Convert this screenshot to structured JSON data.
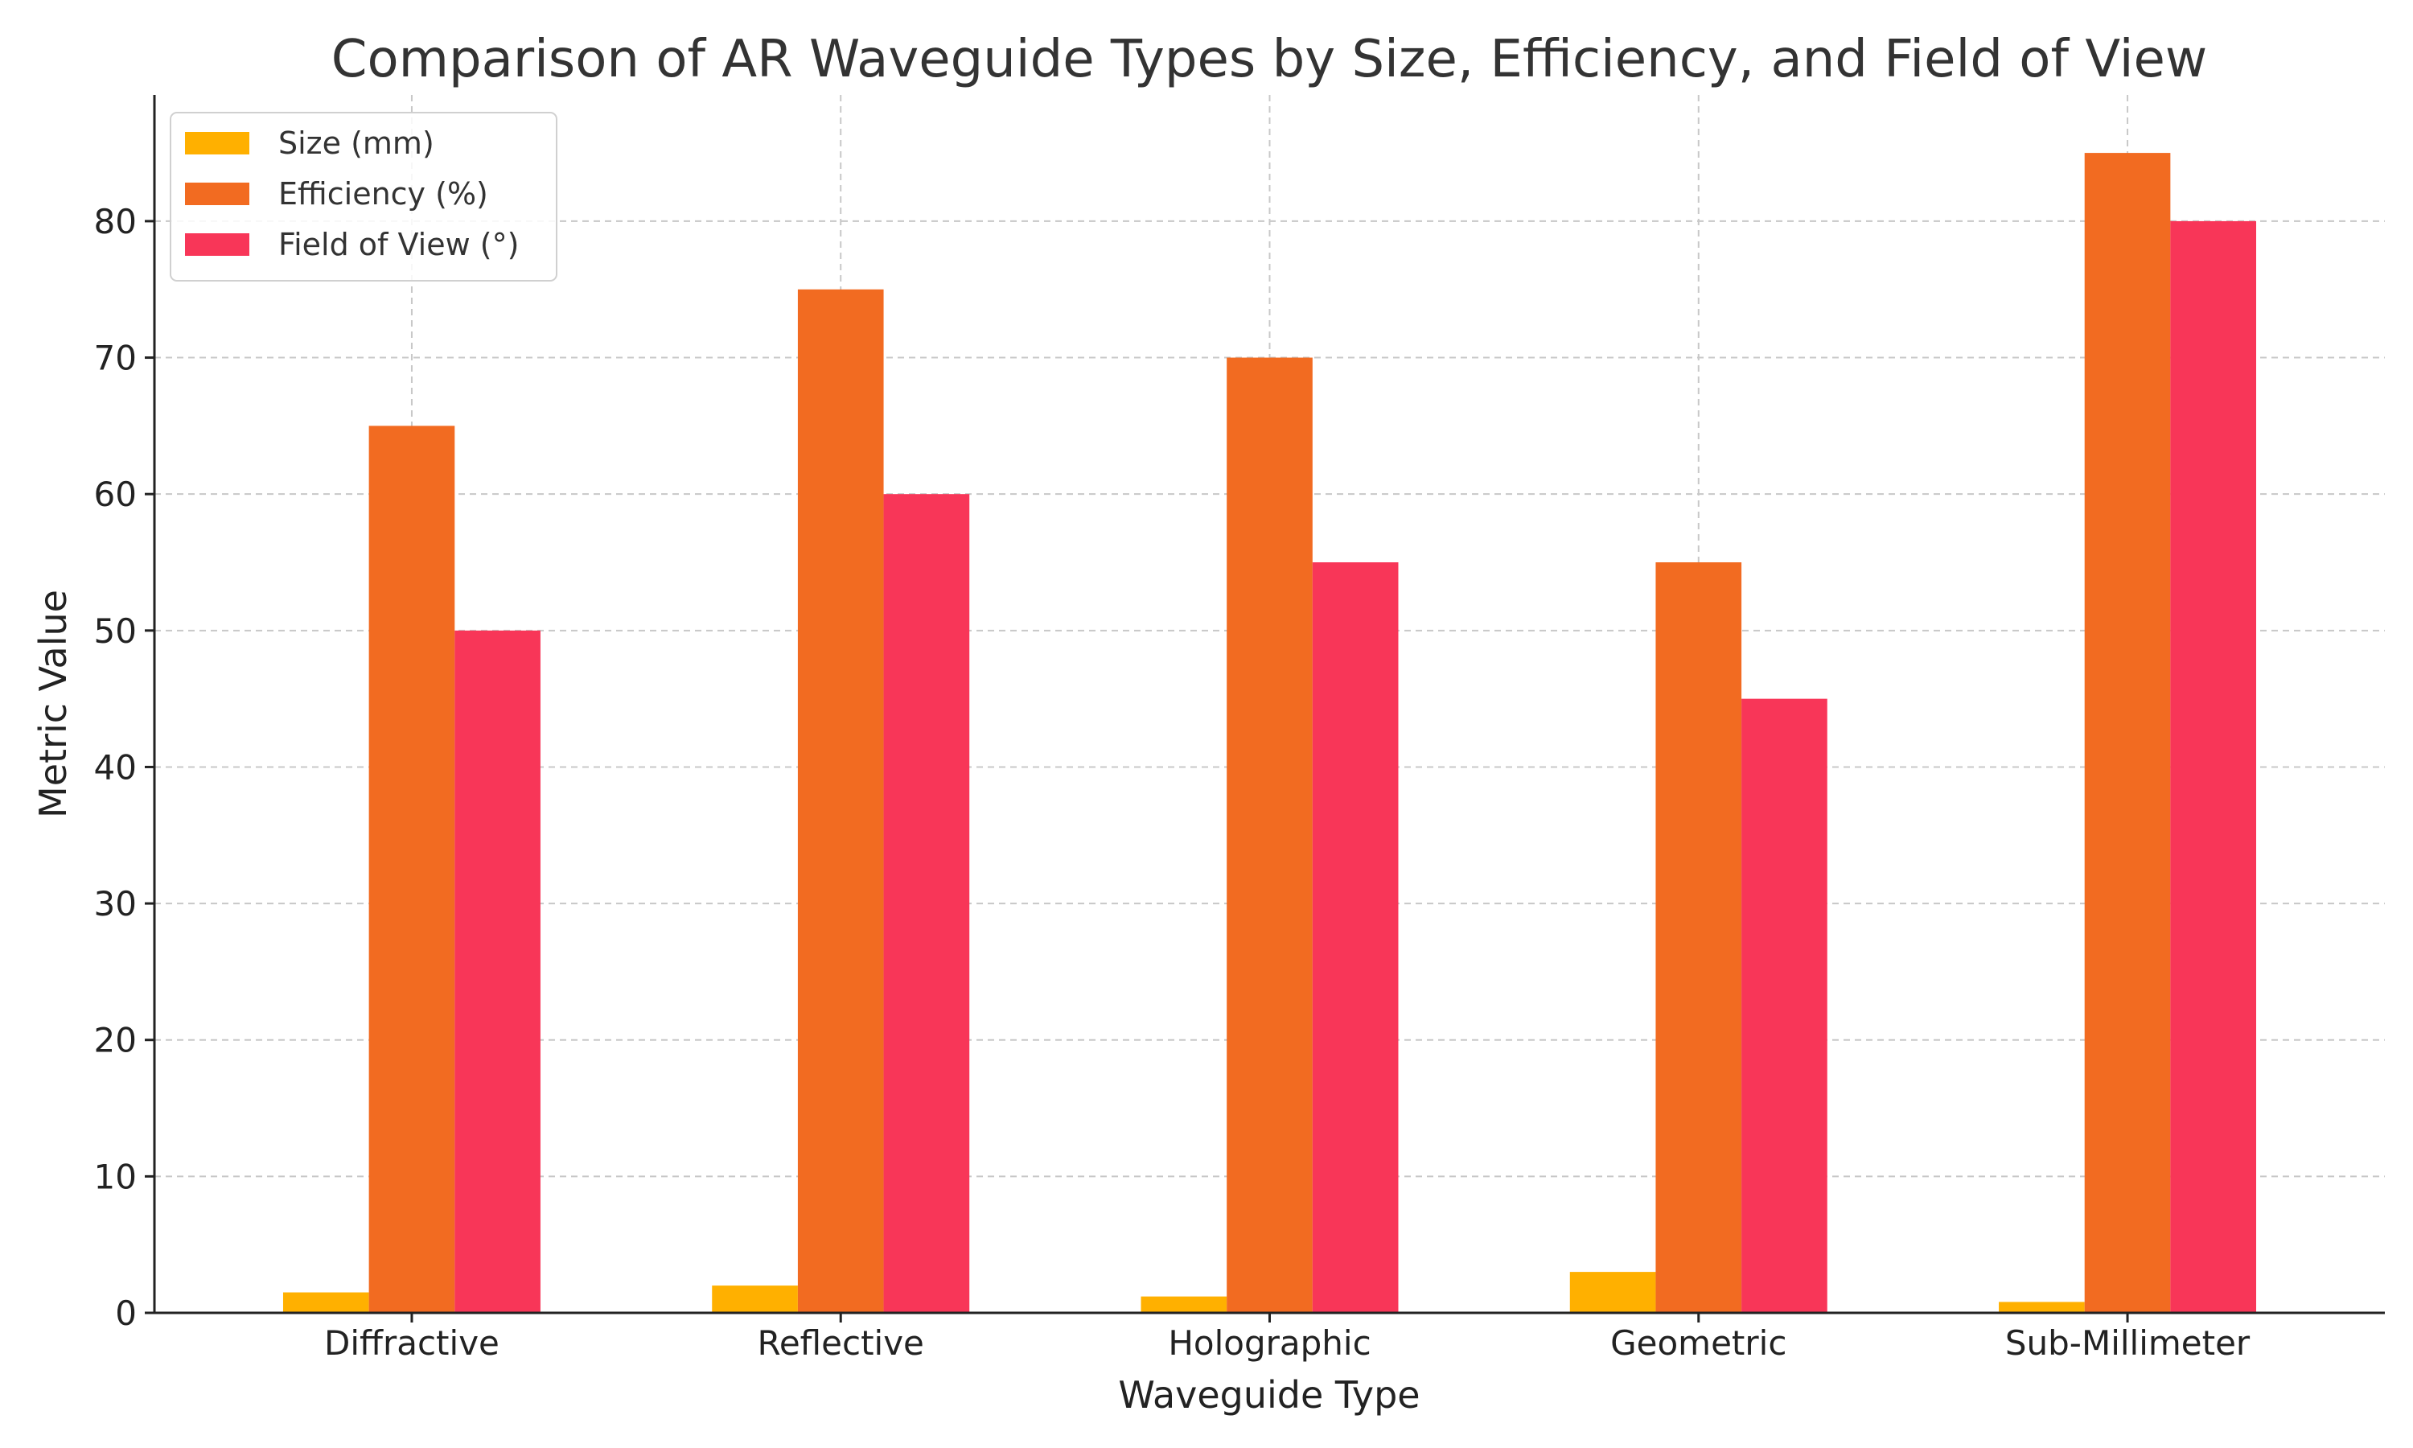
{
  "chart_data": {
    "type": "bar",
    "title": "Comparison of AR Waveguide Types by Size, Efficiency, and Field of View",
    "xlabel": "Waveguide Type",
    "ylabel": "Metric Value",
    "categories": [
      "Diffractive",
      "Reflective",
      "Holographic",
      "Geometric",
      "Sub-Millimeter"
    ],
    "series": [
      {
        "name": "Size (mm)",
        "color": "#FFB000",
        "values": [
          1.5,
          2.0,
          1.2,
          3.0,
          0.8
        ]
      },
      {
        "name": "Efficiency (%)",
        "color": "#F26B21",
        "values": [
          65,
          75,
          70,
          55,
          85
        ]
      },
      {
        "name": "Field of View (°)",
        "color": "#F83658",
        "values": [
          50,
          60,
          55,
          45,
          80
        ]
      }
    ],
    "ylim": [
      0,
      89.25
    ],
    "yticks": [
      0,
      10,
      20,
      30,
      40,
      50,
      60,
      70,
      80
    ],
    "grid": true,
    "legend_position": "top-left"
  }
}
